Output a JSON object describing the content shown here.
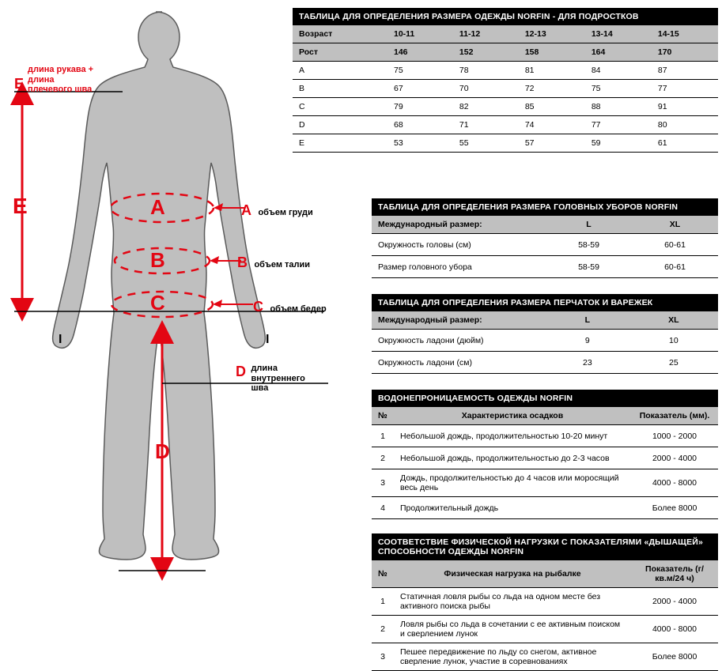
{
  "accent": "#e30613",
  "figure_fill": "#bfbfbf",
  "figure_stroke": "#5a5a5a",
  "labels": {
    "E_full": "длина рукава +\nдлина\nплечевого шва",
    "A": "объем груди",
    "B": "объем талии",
    "C": "объем бедер",
    "D_full": "длина\nвнутреннего\nшва"
  },
  "letters": {
    "A": "A",
    "B": "B",
    "C": "C",
    "D": "D",
    "E": "E",
    "I": "I"
  },
  "tables": {
    "teens": {
      "title": "ТАБЛИЦА ДЛЯ ОПРЕДЕЛЕНИЯ РАЗМЕРА ОДЕЖДЫ NORFIN - ДЛЯ ПОДРОСТКОВ",
      "headers": [
        "Возраст",
        "10-11",
        "11-12",
        "12-13",
        "13-14",
        "14-15"
      ],
      "rows": [
        [
          "Рост",
          "146",
          "152",
          "158",
          "164",
          "170"
        ],
        [
          "A",
          "75",
          "78",
          "81",
          "84",
          "87"
        ],
        [
          "B",
          "67",
          "70",
          "72",
          "75",
          "77"
        ],
        [
          "C",
          "79",
          "82",
          "85",
          "88",
          "91"
        ],
        [
          "D",
          "68",
          "71",
          "74",
          "77",
          "80"
        ],
        [
          "E",
          "53",
          "55",
          "57",
          "59",
          "61"
        ]
      ],
      "col_widths": [
        "120px",
        "auto",
        "auto",
        "auto",
        "auto",
        "auto"
      ]
    },
    "hats": {
      "title": "ТАБЛИЦА ДЛЯ ОПРЕДЕЛЕНИЯ РАЗМЕРА ГОЛОВНЫХ УБОРОВ NORFIN",
      "head": [
        "Международный размер:",
        "L",
        "XL"
      ],
      "rows": [
        [
          "Окружность головы (см)",
          "58-59",
          "60-61"
        ],
        [
          "Размер головного убора",
          "58-59",
          "60-61"
        ]
      ]
    },
    "gloves": {
      "title": "ТАБЛИЦА ДЛЯ ОПРЕДЕЛЕНИЯ РАЗМЕРА ПЕРЧАТОК И ВАРЕЖЕК",
      "head": [
        "Международный размер:",
        "L",
        "XL"
      ],
      "rows": [
        [
          "Окружность ладони (дюйм)",
          "9",
          "10"
        ],
        [
          "Окружность ладони (см)",
          "23",
          "25"
        ]
      ]
    },
    "water": {
      "title": "ВОДОНЕПРОНИЦАЕМОСТЬ ОДЕЖДЫ NORFIN",
      "head": [
        "№",
        "Характеристика осадков",
        "Показатель (мм)."
      ],
      "rows": [
        [
          "1",
          "Небольшой дождь, продолжительностью 10-20 минут",
          "1000 - 2000"
        ],
        [
          "2",
          "Небольшой дождь, продолжительностью до 2-3 часов",
          "2000 - 4000"
        ],
        [
          "3",
          "Дождь, продолжительностью до 4 часов или моросящий весь день",
          "4000 - 8000"
        ],
        [
          "4",
          "Продолжительный дождь",
          "Более 8000"
        ]
      ]
    },
    "breath": {
      "title": "СООТВЕТСТВИЕ ФИЗИЧЕСКОЙ НАГРУЗКИ С ПОКАЗАТЕЛЯМИ «ДЫШАЩЕЙ» СПОСОБНОСТИ ОДЕЖДЫ NORFIN",
      "head": [
        "№",
        "Физическая нагрузка на рыбалке",
        "Показатель (г/кв.м/24 ч)"
      ],
      "rows": [
        [
          "1",
          "Статичная ловля рыбы со льда на одном месте без активного поиска рыбы",
          "2000 - 4000"
        ],
        [
          "2",
          "Ловля рыбы со льда в сочетании с ее активным поиском и сверлением лунок",
          "4000 - 8000"
        ],
        [
          "3",
          "Пешее передвижение по льду со снегом, активное сверление лунок, участие в соревнованиях",
          "Более 8000"
        ]
      ]
    }
  }
}
